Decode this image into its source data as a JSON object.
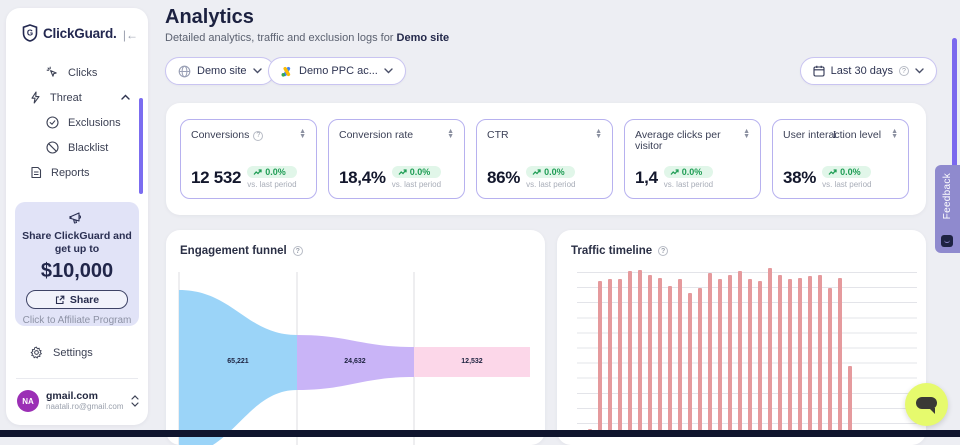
{
  "brand": {
    "name": "ClickGuard."
  },
  "sidebar": {
    "nav": [
      {
        "label": "Clicks"
      },
      {
        "label": "Threat"
      },
      {
        "label": "Exclusions"
      },
      {
        "label": "Blacklist"
      },
      {
        "label": "Reports"
      }
    ],
    "promo": {
      "line1": "Share ClickGuard and",
      "line2": "get up to",
      "amount": "$10,000",
      "share_label": "Share",
      "affiliate_label": "Click to Affiliate Program"
    },
    "settings_label": "Settings",
    "user": {
      "initials": "NA",
      "name": "gmail.com",
      "email": "naatali.ro@gmail.com"
    }
  },
  "header": {
    "title": "Analytics",
    "subtitle": "Detailed analytics, traffic and exclusion logs for ",
    "subtitle_target": "Demo site"
  },
  "filters": {
    "site": "Demo site",
    "account": "Demo PPC ac...",
    "date_range": "Last 30 days"
  },
  "kpis": [
    {
      "label": "Conversions",
      "value": "12 532",
      "change": "0.0%",
      "period": "vs. last period"
    },
    {
      "label": "Conversion rate",
      "value": "18,4%",
      "change": "0.0%",
      "period": "vs. last period"
    },
    {
      "label": "CTR",
      "value": "86%",
      "change": "0.0%",
      "period": "vs. last period"
    },
    {
      "label": "Average clicks per visitor",
      "value": "1,4",
      "change": "0.0%",
      "period": "vs. last period"
    },
    {
      "label": "User interaction level",
      "value": "38%",
      "change": "0.0%",
      "period": "vs. last period"
    }
  ],
  "feedback_label": "Feedback",
  "colors": {
    "accent_purple": "#7b68ee",
    "badge_green": "#1f9d55",
    "badge_bg": "#e1f6e9",
    "promo_bg": "#e1e3f7",
    "avatar_purple": "#9b2fb5",
    "chat_yellow": "#e6fa6d"
  },
  "chart_data": [
    {
      "type": "area",
      "subtype": "funnel",
      "title": "Engagement funnel",
      "stages": [
        {
          "value": 65221,
          "display": "65,221",
          "color": "#9bd4f8"
        },
        {
          "value": 24632,
          "display": "24,632",
          "color": "#c9b4f7"
        },
        {
          "value": 12532,
          "display": "12,532",
          "color": "#fcd7e9"
        }
      ],
      "grid": "vertical-dividers-between-stages",
      "legend": "none"
    },
    {
      "type": "bar",
      "title": "Traffic timeline",
      "x": "time (daily, unlabeled ticks)",
      "ylabel": "",
      "note": "y-axis not visible; values are % of tallest bar, chart cropped at viewport bottom",
      "color": "#e59a9d",
      "values": [
        2,
        92,
        93,
        93,
        98,
        99,
        96,
        94,
        89,
        93,
        85,
        88,
        97,
        93,
        96,
        98,
        93,
        92,
        100,
        96,
        93,
        94,
        95,
        96,
        88,
        94,
        40
      ],
      "grid": "horizontal",
      "legend": "none"
    }
  ]
}
